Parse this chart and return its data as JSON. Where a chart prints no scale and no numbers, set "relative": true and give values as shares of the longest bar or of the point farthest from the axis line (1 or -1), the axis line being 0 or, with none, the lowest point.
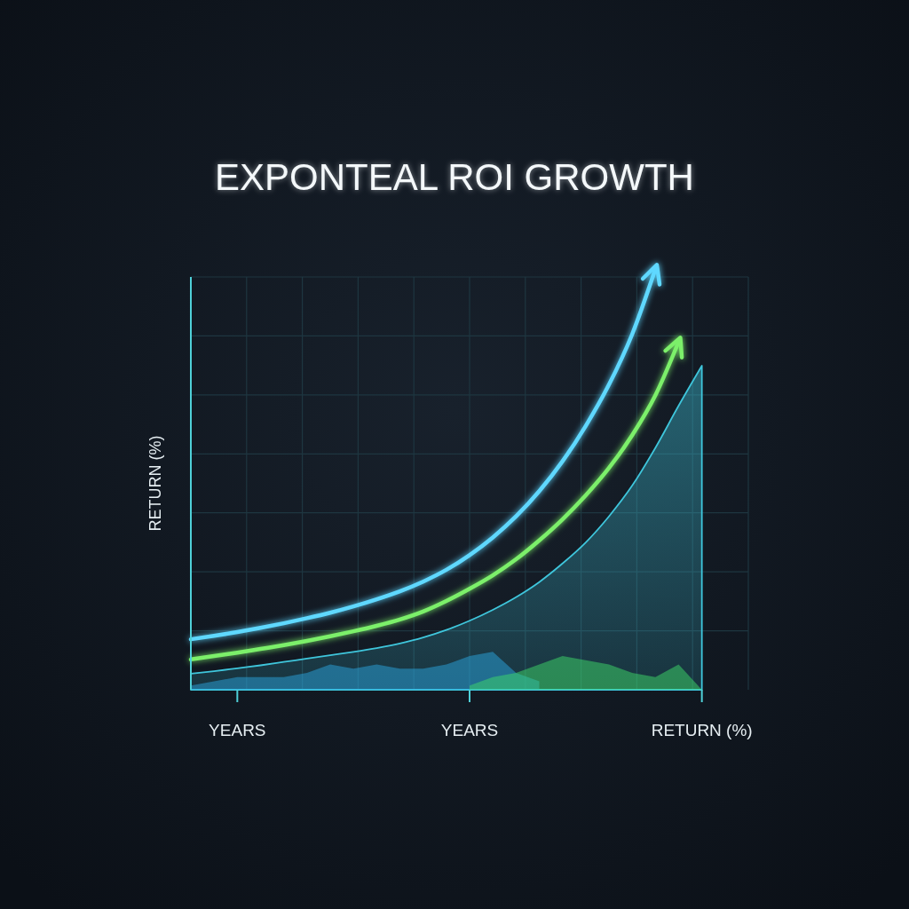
{
  "chart_data": {
    "type": "line",
    "title": "EXPONTEAL ROI GROWTH",
    "ylabel": "RETURN (%)",
    "relative": true,
    "grid": true,
    "categories": [
      null,
      null,
      "YEARS",
      null,
      null,
      null,
      null,
      null,
      null,
      null,
      null,
      null,
      "YEARS",
      null,
      null,
      null,
      null,
      null,
      null,
      null,
      null,
      null,
      "RETURN (%)",
      null,
      null
    ],
    "series": [
      {
        "type": "area",
        "color": "#3fc6dc",
        "values": [
          0.038,
          0.044,
          0.051,
          0.058,
          0.066,
          0.074,
          0.082,
          0.09,
          0.099,
          0.11,
          0.124,
          0.142,
          0.164,
          0.19,
          0.22,
          0.256,
          0.3,
          0.35,
          0.412,
          0.485,
          0.575,
          0.675,
          0.77,
          null,
          null
        ]
      },
      {
        "type": "area",
        "color": "#2aa6e0",
        "values": [
          0.01,
          0.02,
          0.03,
          0.03,
          0.03,
          0.04,
          0.06,
          0.05,
          0.06,
          0.05,
          0.05,
          0.06,
          0.08,
          0.09,
          0.04,
          0.02,
          null,
          null,
          null,
          null,
          null,
          null,
          null,
          null,
          null
        ]
      },
      {
        "type": "area",
        "color": "#3ddc6a",
        "values": [
          null,
          null,
          null,
          null,
          null,
          null,
          null,
          null,
          null,
          null,
          null,
          null,
          0.01,
          0.03,
          0.04,
          0.06,
          0.08,
          0.07,
          0.06,
          0.04,
          0.03,
          0.06,
          0,
          null,
          null
        ]
      },
      {
        "color": "#5fd8ff",
        "values": [
          0.12,
          0.128,
          0.137,
          0.147,
          0.158,
          0.17,
          0.183,
          0.198,
          0.215,
          0.234,
          0.257,
          0.285,
          0.32,
          0.362,
          0.412,
          0.472,
          0.543,
          0.627,
          0.725,
          0.845,
          1,
          null,
          null,
          null,
          null
        ]
      },
      {
        "color": "#7cf06a",
        "values": [
          0.072,
          0.08,
          0.088,
          0.097,
          0.106,
          0.116,
          0.127,
          0.139,
          0.152,
          0.167,
          0.186,
          0.211,
          0.24,
          0.272,
          0.31,
          0.355,
          0.405,
          0.462,
          0.527,
          0.605,
          0.7,
          0.827,
          null,
          null,
          null
        ]
      }
    ]
  }
}
